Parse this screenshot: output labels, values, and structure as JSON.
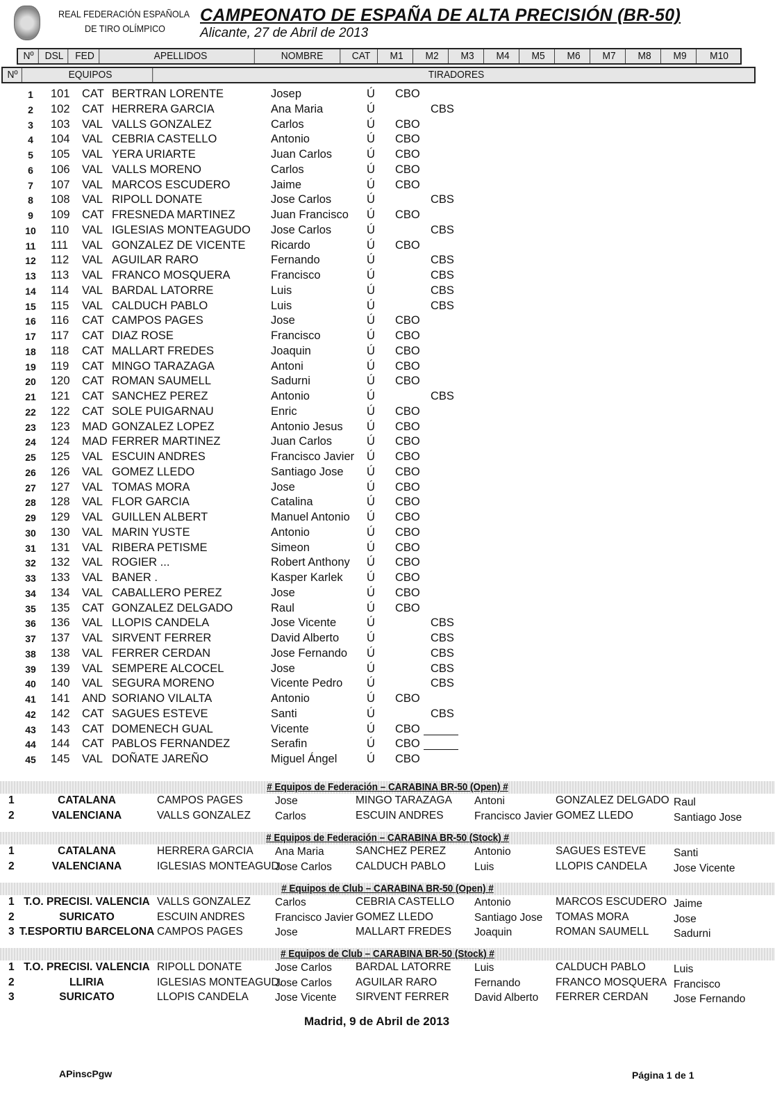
{
  "header": {
    "org_line1": "REAL FEDERACIÓN ESPAÑOLA",
    "org_line2": "DE TIRO OLÍMPICO",
    "title": "CAMPEONATO DE ESPAÑA DE ALTA PRECISIÓN (BR-50)",
    "subtitle": "Alicante, 27 de Abril de 2013"
  },
  "columns": [
    "Nº",
    "DSL",
    "FED",
    "APELLIDOS",
    "NOMBRE",
    "CAT",
    "M1",
    "M2",
    "M3",
    "M4",
    "M5",
    "M6",
    "M7",
    "M8",
    "M9",
    "M10"
  ],
  "team_columns": [
    "Nº",
    "EQUIPOS",
    "TIRADORES"
  ],
  "participants": [
    [
      "1",
      "101",
      "CAT",
      "BERTRAN LORENTE",
      "Josep",
      "Ú",
      "CBO",
      ""
    ],
    [
      "2",
      "102",
      "CAT",
      "HERRERA GARCIA",
      "Ana Maria",
      "Ú",
      "",
      "CBS"
    ],
    [
      "3",
      "103",
      "VAL",
      "VALLS GONZALEZ",
      "Carlos",
      "Ú",
      "CBO",
      ""
    ],
    [
      "4",
      "104",
      "VAL",
      "CEBRIA CASTELLO",
      "Antonio",
      "Ú",
      "CBO",
      ""
    ],
    [
      "5",
      "105",
      "VAL",
      "YERA URIARTE",
      "Juan Carlos",
      "Ú",
      "CBO",
      ""
    ],
    [
      "6",
      "106",
      "VAL",
      "VALLS MORENO",
      "Carlos",
      "Ú",
      "CBO",
      ""
    ],
    [
      "7",
      "107",
      "VAL",
      "MARCOS ESCUDERO",
      "Jaime",
      "Ú",
      "CBO",
      ""
    ],
    [
      "8",
      "108",
      "VAL",
      "RIPOLL DONATE",
      "Jose Carlos",
      "Ú",
      "",
      "CBS"
    ],
    [
      "9",
      "109",
      "CAT",
      "FRESNEDA MARTINEZ",
      "Juan Francisco",
      "Ú",
      "CBO",
      ""
    ],
    [
      "10",
      "110",
      "VAL",
      "IGLESIAS MONTEAGUDO",
      "Jose Carlos",
      "Ú",
      "",
      "CBS"
    ],
    [
      "11",
      "111",
      "VAL",
      "GONZALEZ DE VICENTE",
      "Ricardo",
      "Ú",
      "CBO",
      ""
    ],
    [
      "12",
      "112",
      "VAL",
      "AGUILAR RARO",
      "Fernando",
      "Ú",
      "",
      "CBS"
    ],
    [
      "13",
      "113",
      "VAL",
      "FRANCO MOSQUERA",
      "Francisco",
      "Ú",
      "",
      "CBS"
    ],
    [
      "14",
      "114",
      "VAL",
      "BARDAL LATORRE",
      "Luis",
      "Ú",
      "",
      "CBS"
    ],
    [
      "15",
      "115",
      "VAL",
      "CALDUCH PABLO",
      "Luis",
      "Ú",
      "",
      "CBS"
    ],
    [
      "16",
      "116",
      "CAT",
      "CAMPOS PAGES",
      "Jose",
      "Ú",
      "CBO",
      ""
    ],
    [
      "17",
      "117",
      "CAT",
      "DIAZ ROSE",
      "Francisco",
      "Ú",
      "CBO",
      ""
    ],
    [
      "18",
      "118",
      "CAT",
      "MALLART FREDES",
      "Joaquin",
      "Ú",
      "CBO",
      ""
    ],
    [
      "19",
      "119",
      "CAT",
      "MINGO TARAZAGA",
      "Antoni",
      "Ú",
      "CBO",
      ""
    ],
    [
      "20",
      "120",
      "CAT",
      "ROMAN SAUMELL",
      "Sadurni",
      "Ú",
      "CBO",
      ""
    ],
    [
      "21",
      "121",
      "CAT",
      "SANCHEZ PEREZ",
      "Antonio",
      "Ú",
      "",
      "CBS"
    ],
    [
      "22",
      "122",
      "CAT",
      "SOLE PUIGARNAU",
      "Enric",
      "Ú",
      "CBO",
      ""
    ],
    [
      "23",
      "123",
      "MAD",
      "GONZALEZ LOPEZ",
      "Antonio Jesus",
      "Ú",
      "CBO",
      ""
    ],
    [
      "24",
      "124",
      "MAD",
      "FERRER MARTINEZ",
      "Juan Carlos",
      "Ú",
      "CBO",
      ""
    ],
    [
      "25",
      "125",
      "VAL",
      "ESCUIN ANDRES",
      "Francisco Javier",
      "Ú",
      "CBO",
      ""
    ],
    [
      "26",
      "126",
      "VAL",
      "GOMEZ LLEDO",
      "Santiago Jose",
      "Ú",
      "CBO",
      ""
    ],
    [
      "27",
      "127",
      "VAL",
      "TOMAS MORA",
      "Jose",
      "Ú",
      "CBO",
      ""
    ],
    [
      "28",
      "128",
      "VAL",
      "FLOR GARCIA",
      "Catalina",
      "Ú",
      "CBO",
      ""
    ],
    [
      "29",
      "129",
      "VAL",
      "GUILLEN ALBERT",
      "Manuel Antonio",
      "Ú",
      "CBO",
      ""
    ],
    [
      "30",
      "130",
      "VAL",
      "MARIN YUSTE",
      "Antonio",
      "Ú",
      "CBO",
      ""
    ],
    [
      "31",
      "131",
      "VAL",
      "RIBERA PETISME",
      "Simeon",
      "Ú",
      "CBO",
      ""
    ],
    [
      "32",
      "132",
      "VAL",
      "ROGIER ...",
      "Robert Anthony",
      "Ú",
      "CBO",
      ""
    ],
    [
      "33",
      "133",
      "VAL",
      "BANER .",
      "Kasper Karlek",
      "Ú",
      "CBO",
      ""
    ],
    [
      "34",
      "134",
      "VAL",
      "CABALLERO PEREZ",
      "Jose",
      "Ú",
      "CBO",
      ""
    ],
    [
      "35",
      "135",
      "CAT",
      "GONZALEZ DELGADO",
      "Raul",
      "Ú",
      "CBO",
      ""
    ],
    [
      "36",
      "136",
      "VAL",
      "LLOPIS CANDELA",
      "Jose Vicente",
      "Ú",
      "",
      "CBS"
    ],
    [
      "37",
      "137",
      "VAL",
      "SIRVENT FERRER",
      "David Alberto",
      "Ú",
      "",
      "CBS"
    ],
    [
      "38",
      "138",
      "VAL",
      "FERRER CERDAN",
      "Jose Fernando",
      "Ú",
      "",
      "CBS"
    ],
    [
      "39",
      "139",
      "VAL",
      "SEMPERE ALCOCEL",
      "Jose",
      "Ú",
      "",
      "CBS"
    ],
    [
      "40",
      "140",
      "VAL",
      "SEGURA MORENO",
      "Vicente Pedro",
      "Ú",
      "",
      "CBS"
    ],
    [
      "41",
      "141",
      "AND",
      "SORIANO VILALTA",
      "Antonio",
      "Ú",
      "CBO",
      ""
    ],
    [
      "42",
      "142",
      "CAT",
      "SAGUES ESTEVE",
      "Santi",
      "Ú",
      "",
      "CBS"
    ],
    [
      "43",
      "143",
      "CAT",
      "DOMENECH GUAL",
      "Vicente",
      "Ú",
      "CBO",
      ""
    ],
    [
      "44",
      "144",
      "CAT",
      "PABLOS FERNANDEZ",
      "Serafin",
      "Ú",
      "CBO",
      ""
    ],
    [
      "45",
      "145",
      "VAL",
      "DOÑATE JAREÑO",
      "Miguel Ángel",
      "Ú",
      "CBO",
      ""
    ]
  ],
  "teams": [
    {
      "title": "# Equipos de Federación – CARABINA BR-50 (Open) #",
      "rows": [
        [
          "1",
          "CATALANA",
          "CAMPOS PAGES",
          "Jose",
          "MINGO TARAZAGA",
          "Antoni",
          "GONZALEZ DELGADO",
          "Raul"
        ],
        [
          "2",
          "VALENCIANA",
          "VALLS GONZALEZ",
          "Carlos",
          "ESCUIN ANDRES",
          "Francisco Javier",
          "GOMEZ LLEDO",
          "Santiago Jose"
        ]
      ]
    },
    {
      "title": "# Equipos de Federación – CARABINA BR-50 (Stock) #",
      "rows": [
        [
          "1",
          "CATALANA",
          "HERRERA GARCIA",
          "Ana Maria",
          "SANCHEZ PEREZ",
          "Antonio",
          "SAGUES ESTEVE",
          "Santi"
        ],
        [
          "2",
          "VALENCIANA",
          "IGLESIAS MONTEAGUD.",
          "Jose Carlos",
          "CALDUCH PABLO",
          "Luis",
          "LLOPIS CANDELA",
          "Jose Vicente"
        ]
      ]
    },
    {
      "title": "# Equipos de Club – CARABINA BR-50 (Open) #",
      "rows": [
        [
          "1",
          "T.O. PRECISI. VALENCIA",
          "VALLS GONZALEZ",
          "Carlos",
          "CEBRIA CASTELLO",
          "Antonio",
          "MARCOS ESCUDERO",
          "Jaime"
        ],
        [
          "2",
          "SURICATO",
          "ESCUIN ANDRES",
          "Francisco Javier",
          "GOMEZ LLEDO",
          "Santiago Jose",
          "TOMAS MORA",
          "Jose"
        ],
        [
          "3",
          "T.ESPORTIU BARCELONA",
          "CAMPOS PAGES",
          "Jose",
          "MALLART FREDES",
          "Joaquin",
          "ROMAN SAUMELL",
          "Sadurni"
        ]
      ]
    },
    {
      "title": "# Equipos de Club – CARABINA BR-50 (Stock) #",
      "rows": [
        [
          "1",
          "T.O. PRECISI. VALENCIA",
          "RIPOLL DONATE",
          "Jose Carlos",
          "BARDAL LATORRE",
          "Luis",
          "CALDUCH PABLO",
          "Luis"
        ],
        [
          "2",
          "LLIRIA",
          "IGLESIAS MONTEAGUD.",
          "Jose Carlos",
          "AGUILAR RARO",
          "Fernando",
          "FRANCO MOSQUERA",
          "Francisco"
        ],
        [
          "3",
          "SURICATO",
          "LLOPIS CANDELA",
          "Jose Vicente",
          "SIRVENT FERRER",
          "David Alberto",
          "FERRER CERDAN",
          "Jose Fernando"
        ]
      ]
    }
  ],
  "footer": {
    "signature": "Madrid, 9 de Abril de 2013",
    "code": "APinscPgw",
    "page": "Página 1 de 1"
  }
}
